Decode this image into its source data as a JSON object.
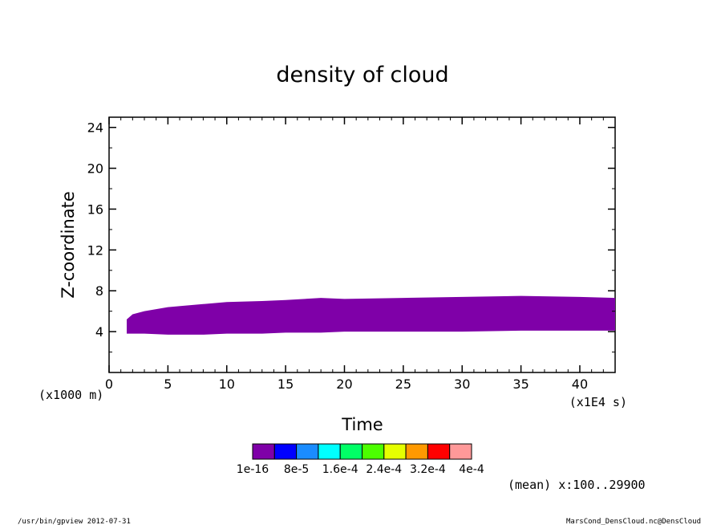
{
  "chart_data": {
    "type": "area",
    "title": "density of cloud",
    "xlabel": "Time",
    "ylabel": "Z-coordinate",
    "x_unit_label": "(x1E4 s)",
    "y_unit_label": "(x1000 m)",
    "xlim": [
      0,
      43
    ],
    "ylim": [
      0,
      25
    ],
    "x_ticks": [
      0,
      5,
      10,
      15,
      20,
      25,
      30,
      35,
      40
    ],
    "y_ticks": [
      4,
      8,
      12,
      16,
      20,
      24
    ],
    "fill_color": "#7f00a8",
    "series": [
      {
        "x": [
          1.5,
          2,
          3,
          5,
          8,
          10,
          13,
          15,
          18,
          20,
          25,
          30,
          35,
          40,
          43
        ],
        "top": [
          5.2,
          5.7,
          6.0,
          6.4,
          6.7,
          6.9,
          7.0,
          7.1,
          7.3,
          7.2,
          7.3,
          7.4,
          7.5,
          7.4,
          7.3
        ],
        "bottom": [
          3.8,
          3.8,
          3.8,
          3.7,
          3.7,
          3.8,
          3.8,
          3.9,
          3.9,
          4.0,
          4.0,
          4.0,
          4.1,
          4.1,
          4.1
        ]
      }
    ],
    "colorbar": {
      "colors": [
        "#7f00a8",
        "#0000ff",
        "#1a8cff",
        "#00ffff",
        "#00ff66",
        "#4cff00",
        "#e5ff00",
        "#ff9900",
        "#ff0000",
        "#ff9999"
      ],
      "labels": [
        "1e-16",
        "8e-5",
        "1.6e-4",
        "2.4e-4",
        "3.2e-4",
        "4e-4"
      ]
    },
    "annotation": "(mean) x:100..29900"
  },
  "footer": {
    "left": "/usr/bin/gpview  2012-07-31",
    "right": "MarsCond_DensCloud.nc@DensCloud"
  }
}
